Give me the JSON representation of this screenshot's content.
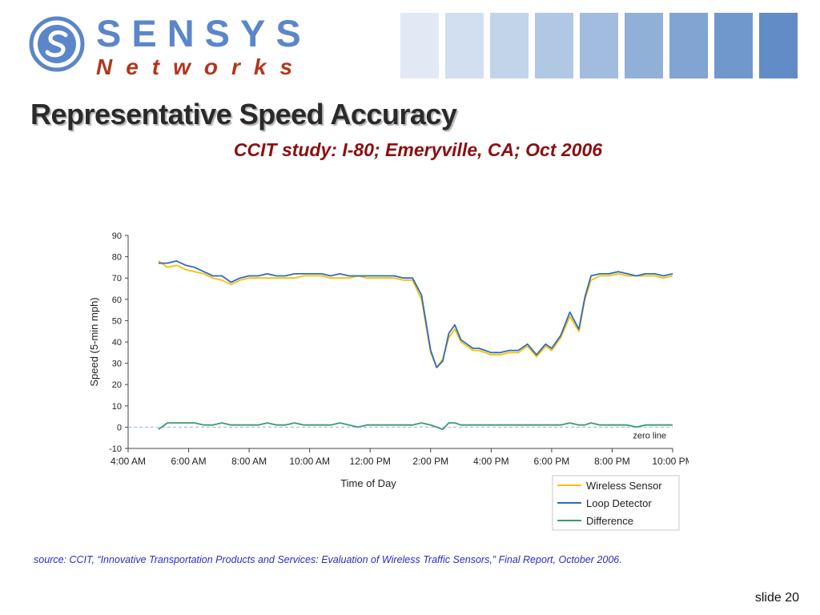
{
  "logo": {
    "top_text": "SENSYS",
    "bottom_text": "Networks",
    "mark_icon": "sensys-logo-icon",
    "colors": {
      "blue": "#5b86c9",
      "red": "#b2361c"
    }
  },
  "header_squares": {
    "colors": [
      "#e1e9f5",
      "#d1dff0",
      "#c1d4ea",
      "#b1c8e4",
      "#a1bcde",
      "#91b0d8",
      "#81a4d2",
      "#7198cc",
      "#618cc6"
    ]
  },
  "title": "Representative Speed Accuracy",
  "subtitle": "CCIT study:  I-80; Emeryville, CA; Oct 2006",
  "chart_data": {
    "type": "line",
    "title": "",
    "xlabel": "Time of Day",
    "ylabel": "Speed (5-min mph)",
    "ylim": [
      -10,
      90
    ],
    "yticks": [
      "90",
      "80",
      "70",
      "60",
      "50",
      "40",
      "30",
      "20",
      "10",
      "0",
      "-10"
    ],
    "xlim": [
      4,
      22
    ],
    "xticks": [
      "4:00 AM",
      "6:00 AM",
      "8:00 AM",
      "10:00 AM",
      "12:00 PM",
      "2:00 PM",
      "4:00 PM",
      "6:00 PM",
      "8:00 PM",
      "10:00 PM"
    ],
    "zero_line_label": "zero line",
    "legend_position": "bottom-right",
    "series": [
      {
        "name": "Wireless Sensor",
        "color": "#f5c000",
        "x": [
          5.0,
          5.3,
          5.6,
          5.9,
          6.2,
          6.5,
          6.8,
          7.1,
          7.4,
          7.7,
          8.0,
          8.3,
          8.6,
          8.9,
          9.2,
          9.5,
          9.8,
          10.1,
          10.4,
          10.7,
          11.0,
          11.3,
          11.6,
          11.9,
          12.2,
          12.5,
          12.8,
          13.1,
          13.4,
          13.7,
          14.0,
          14.2,
          14.4,
          14.6,
          14.8,
          15.0,
          15.2,
          15.4,
          15.6,
          15.8,
          16.0,
          16.3,
          16.6,
          16.9,
          17.2,
          17.5,
          17.8,
          18.0,
          18.3,
          18.6,
          18.9,
          19.1,
          19.3,
          19.6,
          19.9,
          20.2,
          20.5,
          20.8,
          21.1,
          21.4,
          21.7,
          22.0
        ],
        "y": [
          78,
          75,
          76,
          74,
          73,
          72,
          70,
          69,
          67,
          69,
          70,
          70,
          70,
          70,
          70,
          70,
          71,
          71,
          71,
          70,
          70,
          70,
          71,
          70,
          70,
          70,
          70,
          69,
          69,
          60,
          35,
          28,
          32,
          42,
          46,
          40,
          38,
          36,
          36,
          35,
          34,
          34,
          35,
          35,
          38,
          33,
          38,
          36,
          42,
          52,
          45,
          60,
          69,
          71,
          71,
          72,
          71,
          71,
          71,
          71,
          70,
          71
        ]
      },
      {
        "name": "Loop Detector",
        "color": "#2f6bbf",
        "x": [
          5.0,
          5.3,
          5.6,
          5.9,
          6.2,
          6.5,
          6.8,
          7.1,
          7.4,
          7.7,
          8.0,
          8.3,
          8.6,
          8.9,
          9.2,
          9.5,
          9.8,
          10.1,
          10.4,
          10.7,
          11.0,
          11.3,
          11.6,
          11.9,
          12.2,
          12.5,
          12.8,
          13.1,
          13.4,
          13.7,
          14.0,
          14.2,
          14.4,
          14.6,
          14.8,
          15.0,
          15.2,
          15.4,
          15.6,
          15.8,
          16.0,
          16.3,
          16.6,
          16.9,
          17.2,
          17.5,
          17.8,
          18.0,
          18.3,
          18.6,
          18.9,
          19.1,
          19.3,
          19.6,
          19.9,
          20.2,
          20.5,
          20.8,
          21.1,
          21.4,
          21.7,
          22.0
        ],
        "y": [
          77,
          77,
          78,
          76,
          75,
          73,
          71,
          71,
          68,
          70,
          71,
          71,
          72,
          71,
          71,
          72,
          72,
          72,
          72,
          71,
          72,
          71,
          71,
          71,
          71,
          71,
          71,
          70,
          70,
          62,
          36,
          28,
          31,
          44,
          48,
          41,
          39,
          37,
          37,
          36,
          35,
          35,
          36,
          36,
          39,
          34,
          39,
          37,
          43,
          54,
          46,
          61,
          71,
          72,
          72,
          73,
          72,
          71,
          72,
          72,
          71,
          72
        ]
      },
      {
        "name": "Difference",
        "color": "#3d9b6b",
        "x": [
          5.0,
          5.3,
          5.6,
          5.9,
          6.2,
          6.5,
          6.8,
          7.1,
          7.4,
          7.7,
          8.0,
          8.3,
          8.6,
          8.9,
          9.2,
          9.5,
          9.8,
          10.1,
          10.4,
          10.7,
          11.0,
          11.3,
          11.6,
          11.9,
          12.2,
          12.5,
          12.8,
          13.1,
          13.4,
          13.7,
          14.0,
          14.2,
          14.4,
          14.6,
          14.8,
          15.0,
          15.2,
          15.4,
          15.6,
          15.8,
          16.0,
          16.3,
          16.6,
          16.9,
          17.2,
          17.5,
          17.8,
          18.0,
          18.3,
          18.6,
          18.9,
          19.1,
          19.3,
          19.6,
          19.9,
          20.2,
          20.5,
          20.8,
          21.1,
          21.4,
          21.7,
          22.0
        ],
        "y": [
          -1,
          2,
          2,
          2,
          2,
          1,
          1,
          2,
          1,
          1,
          1,
          1,
          2,
          1,
          1,
          2,
          1,
          1,
          1,
          1,
          2,
          1,
          0,
          1,
          1,
          1,
          1,
          1,
          1,
          2,
          1,
          0,
          -1,
          2,
          2,
          1,
          1,
          1,
          1,
          1,
          1,
          1,
          1,
          1,
          1,
          1,
          1,
          1,
          1,
          2,
          1,
          1,
          2,
          1,
          1,
          1,
          1,
          0,
          1,
          1,
          1,
          1
        ]
      }
    ]
  },
  "source": "source:  CCIT, “Innovative Transportation Products and Services:  Evaluation of Wireless Traffic Sensors,” Final Report, October 2006.",
  "slide_label": "slide 20"
}
